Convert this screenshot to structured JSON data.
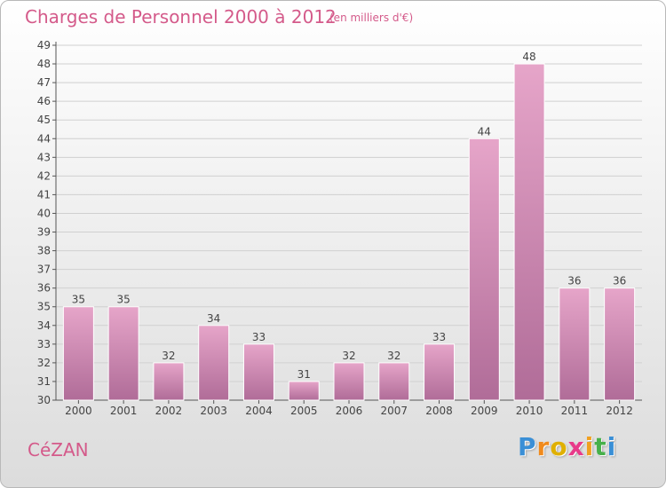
{
  "header": {
    "title": "Charges de Personnel 2000 à 2012",
    "subtitle": "(en milliers d'€)"
  },
  "footer": {
    "commune": "CéZAN",
    "logo_letters": [
      {
        "char": "P",
        "color": "#3a8fd6"
      },
      {
        "char": "r",
        "color": "#f08a1c"
      },
      {
        "char": "o",
        "color": "#e0b000"
      },
      {
        "char": "x",
        "color": "#e83a8a"
      },
      {
        "char": "i",
        "color": "#f0a020"
      },
      {
        "char": "t",
        "color": "#47b04a"
      },
      {
        "char": "i",
        "color": "#3a8fd6"
      }
    ]
  },
  "colors": {
    "bar_light": "#e6a5c9",
    "bar_dark": "#b06c98",
    "title": "#d45a8a",
    "grid": "#d0d0d0"
  },
  "chart_data": {
    "type": "bar",
    "title": "Charges de Personnel 2000 à 2012",
    "subtitle": "(en milliers d'€)",
    "categories": [
      "2000",
      "2001",
      "2002",
      "2003",
      "2004",
      "2005",
      "2006",
      "2007",
      "2008",
      "2009",
      "2010",
      "2011",
      "2012"
    ],
    "values": [
      35,
      35,
      32,
      34,
      33,
      31,
      32,
      32,
      33,
      44,
      48,
      36,
      36
    ],
    "ylim": [
      30,
      49
    ],
    "yticks": [
      30,
      31,
      32,
      33,
      34,
      35,
      36,
      37,
      38,
      39,
      40,
      41,
      42,
      43,
      44,
      45,
      46,
      47,
      48,
      49
    ],
    "grid": true,
    "xlabel": "",
    "ylabel": ""
  }
}
